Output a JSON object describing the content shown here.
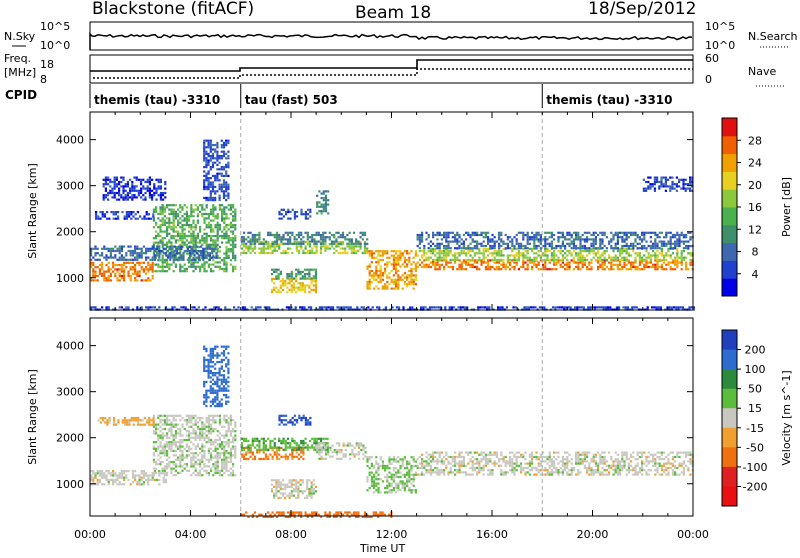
{
  "header": {
    "station": "Blackstone (fitACF)",
    "beam": "Beam 18",
    "date": "18/Sep/2012"
  },
  "top_panels": {
    "noise_label": "N.Sky",
    "noise_ticks": [
      "10^5",
      "10^0"
    ],
    "noise_right_label": "N.Search",
    "freq_label_1": "Freq.",
    "freq_label_2": "[MHz]",
    "freq_ticks": [
      "18",
      "8"
    ],
    "nave_label": "Nave",
    "nave_ticks": [
      "60",
      "0"
    ],
    "cpid_label": "CPID",
    "cpid_segments": [
      {
        "label": "themis (tau) -3310",
        "start_hour": 0,
        "end_hour": 6
      },
      {
        "label": "tau (fast) 503",
        "start_hour": 6,
        "end_hour": 18
      },
      {
        "label": "themis (tau) -3310",
        "start_hour": 18,
        "end_hour": 24
      }
    ]
  },
  "chart_data": [
    {
      "type": "heatmap",
      "title": "Power",
      "ylabel": "Slant Range [km]",
      "xlabel": "Time UT",
      "xlim": [
        0,
        24
      ],
      "ylim": [
        300,
        4600
      ],
      "x_tick_labels": [
        "00:00",
        "04:00",
        "08:00",
        "12:00",
        "16:00",
        "20:00",
        "00:00"
      ],
      "y_ticks": [
        1000,
        2000,
        3000,
        4000
      ],
      "colorbar": {
        "label": "Power [dB]",
        "ticks": [
          4,
          8,
          12,
          16,
          20,
          24,
          28
        ],
        "range": [
          0,
          32
        ],
        "colors": [
          "#0000e6",
          "#2040d0",
          "#3d68b0",
          "#3f8f6a",
          "#4cb04c",
          "#8cc83c",
          "#e8d020",
          "#f0a000",
          "#f06000",
          "#e01010"
        ]
      },
      "regions": [
        {
          "t0": 0.0,
          "t1": 2.5,
          "r0": 950,
          "r1": 1350,
          "value": 26
        },
        {
          "t0": 2.5,
          "t1": 5.8,
          "r0": 1150,
          "r1": 2600,
          "value": 14
        },
        {
          "t0": 0.0,
          "t1": 5.0,
          "r0": 1400,
          "r1": 1700,
          "value": 8
        },
        {
          "t0": 0.2,
          "t1": 2.5,
          "r0": 2300,
          "r1": 2450,
          "value": 5
        },
        {
          "t0": 0.5,
          "t1": 3.0,
          "r0": 2700,
          "r1": 3200,
          "value": 4
        },
        {
          "t0": 4.5,
          "t1": 5.5,
          "r0": 2700,
          "r1": 4000,
          "value": 6
        },
        {
          "t0": 6.0,
          "t1": 11.0,
          "r0": 1550,
          "r1": 1800,
          "value": 18
        },
        {
          "t0": 6.0,
          "t1": 11.0,
          "r0": 1750,
          "r1": 2000,
          "value": 10
        },
        {
          "t0": 7.2,
          "t1": 9.0,
          "r0": 700,
          "r1": 1000,
          "value": 22
        },
        {
          "t0": 7.2,
          "t1": 9.0,
          "r0": 1000,
          "r1": 1200,
          "value": 12
        },
        {
          "t0": 9.0,
          "t1": 9.5,
          "r0": 2400,
          "r1": 2900,
          "value": 10
        },
        {
          "t0": 7.5,
          "t1": 8.8,
          "r0": 2300,
          "r1": 2500,
          "value": 6
        },
        {
          "t0": 11.0,
          "t1": 13.0,
          "r0": 750,
          "r1": 1600,
          "value": 24
        },
        {
          "t0": 13.0,
          "t1": 24.0,
          "r0": 1200,
          "r1": 1400,
          "value": 26
        },
        {
          "t0": 13.0,
          "t1": 24.0,
          "r0": 1400,
          "r1": 1650,
          "value": 18
        },
        {
          "t0": 13.0,
          "t1": 24.0,
          "r0": 1650,
          "r1": 2000,
          "value": 8
        },
        {
          "t0": 22.0,
          "t1": 24.0,
          "r0": 2900,
          "r1": 3200,
          "value": 5
        },
        {
          "t0": 0.0,
          "t1": 24.0,
          "r0": 300,
          "r1": 380,
          "value": 5
        }
      ]
    },
    {
      "type": "heatmap",
      "title": "Velocity",
      "ylabel": "Slant Range [km]",
      "xlabel": "Time UT",
      "xlim": [
        0,
        24
      ],
      "ylim": [
        300,
        4600
      ],
      "x_tick_labels": [
        "00:00",
        "04:00",
        "08:00",
        "12:00",
        "16:00",
        "20:00",
        "00:00"
      ],
      "y_ticks": [
        1000,
        2000,
        3000,
        4000
      ],
      "colorbar": {
        "label": "Velocity [m s^-1]",
        "ticks": [
          "200",
          "100",
          "50",
          "15",
          "-15",
          "-50",
          "-100",
          "-200"
        ],
        "colors": [
          "#2040c0",
          "#2c6cd0",
          "#2c8a3c",
          "#5cbc3c",
          "#c8c8c0",
          "#f0a030",
          "#f07010",
          "#e02020",
          "#e81010"
        ]
      },
      "regions": [
        {
          "t0": 0.0,
          "t1": 3.0,
          "r0": 1000,
          "r1": 1300,
          "value": 0
        },
        {
          "t0": 2.5,
          "t1": 5.8,
          "r0": 1200,
          "r1": 2500,
          "value": 5
        },
        {
          "t0": 0.3,
          "t1": 2.5,
          "r0": 2300,
          "r1": 2450,
          "value": -30
        },
        {
          "t0": 4.5,
          "t1": 5.5,
          "r0": 2700,
          "r1": 4000,
          "value": 150
        },
        {
          "t0": 6.0,
          "t1": 8.5,
          "r0": 1550,
          "r1": 1800,
          "value": -60
        },
        {
          "t0": 6.0,
          "t1": 9.5,
          "r0": 1750,
          "r1": 2000,
          "value": 40
        },
        {
          "t0": 7.2,
          "t1": 9.0,
          "r0": 700,
          "r1": 1100,
          "value": 0
        },
        {
          "t0": 7.5,
          "t1": 8.8,
          "r0": 2300,
          "r1": 2500,
          "value": 200
        },
        {
          "t0": 9.0,
          "t1": 11.0,
          "r0": 1550,
          "r1": 1900,
          "value": 0
        },
        {
          "t0": 11.0,
          "t1": 13.0,
          "r0": 800,
          "r1": 1600,
          "value": 20
        },
        {
          "t0": 13.0,
          "t1": 24.0,
          "r0": 1200,
          "r1": 1700,
          "value": 0
        },
        {
          "t0": 6.0,
          "t1": 12.0,
          "r0": 300,
          "r1": 400,
          "value": -80
        }
      ]
    }
  ]
}
